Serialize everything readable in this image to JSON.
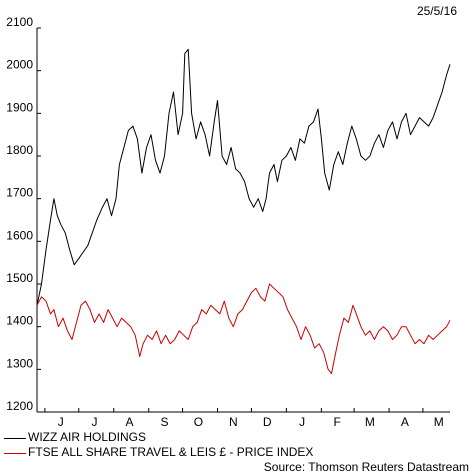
{
  "date_label": "25/5/16",
  "source": "Source: Thomson Reuters Datastream",
  "chart_data": {
    "type": "line",
    "title": "",
    "xlabel": "",
    "ylabel": "",
    "ylim": [
      1200,
      2100
    ],
    "y_ticks": [
      1200,
      1300,
      1400,
      1500,
      1600,
      1700,
      1800,
      1900,
      2000,
      2100
    ],
    "x_range": [
      "2015-05-25",
      "2016-05-25"
    ],
    "x_ticks": [
      {
        "label": "J",
        "date": "2015-06-15"
      },
      {
        "label": "J",
        "date": "2015-07-15"
      },
      {
        "label": "A",
        "date": "2015-08-15"
      },
      {
        "label": "S",
        "date": "2015-09-15"
      },
      {
        "label": "O",
        "date": "2015-10-15"
      },
      {
        "label": "N",
        "date": "2015-11-15"
      },
      {
        "label": "D",
        "date": "2015-12-15"
      },
      {
        "label": "J",
        "date": "2016-01-15"
      },
      {
        "label": "F",
        "date": "2016-02-15"
      },
      {
        "label": "M",
        "date": "2016-03-15"
      },
      {
        "label": "A",
        "date": "2016-04-15"
      },
      {
        "label": "M",
        "date": "2016-05-15"
      }
    ],
    "grid": false,
    "legend": "bottom-left",
    "series": [
      {
        "name": "WIZZ AIR HOLDINGS",
        "color": "#000000",
        "points": [
          [
            "2015-05-25",
            1450
          ],
          [
            "2015-05-29",
            1500
          ],
          [
            "2015-06-02",
            1580
          ],
          [
            "2015-06-06",
            1650
          ],
          [
            "2015-06-09",
            1700
          ],
          [
            "2015-06-12",
            1660
          ],
          [
            "2015-06-15",
            1640
          ],
          [
            "2015-06-19",
            1620
          ],
          [
            "2015-06-23",
            1580
          ],
          [
            "2015-06-27",
            1545
          ],
          [
            "2015-07-01",
            1560
          ],
          [
            "2015-07-05",
            1575
          ],
          [
            "2015-07-09",
            1590
          ],
          [
            "2015-07-13",
            1620
          ],
          [
            "2015-07-17",
            1650
          ],
          [
            "2015-07-22",
            1680
          ],
          [
            "2015-07-26",
            1700
          ],
          [
            "2015-07-30",
            1660
          ],
          [
            "2015-08-03",
            1700
          ],
          [
            "2015-08-06",
            1780
          ],
          [
            "2015-08-10",
            1820
          ],
          [
            "2015-08-14",
            1860
          ],
          [
            "2015-08-18",
            1870
          ],
          [
            "2015-08-22",
            1840
          ],
          [
            "2015-08-26",
            1760
          ],
          [
            "2015-08-30",
            1820
          ],
          [
            "2015-09-03",
            1850
          ],
          [
            "2015-09-07",
            1790
          ],
          [
            "2015-09-11",
            1760
          ],
          [
            "2015-09-15",
            1800
          ],
          [
            "2015-09-19",
            1900
          ],
          [
            "2015-09-23",
            1950
          ],
          [
            "2015-09-27",
            1850
          ],
          [
            "2015-10-01",
            1900
          ],
          [
            "2015-10-03",
            2040
          ],
          [
            "2015-10-06",
            2050
          ],
          [
            "2015-10-09",
            1900
          ],
          [
            "2015-10-13",
            1840
          ],
          [
            "2015-10-17",
            1880
          ],
          [
            "2015-10-21",
            1850
          ],
          [
            "2015-10-25",
            1800
          ],
          [
            "2015-10-29",
            1880
          ],
          [
            "2015-11-01",
            1930
          ],
          [
            "2015-11-05",
            1800
          ],
          [
            "2015-11-09",
            1780
          ],
          [
            "2015-11-13",
            1820
          ],
          [
            "2015-11-17",
            1770
          ],
          [
            "2015-11-21",
            1760
          ],
          [
            "2015-11-25",
            1740
          ],
          [
            "2015-11-29",
            1700
          ],
          [
            "2015-12-03",
            1680
          ],
          [
            "2015-12-07",
            1700
          ],
          [
            "2015-12-11",
            1670
          ],
          [
            "2015-12-14",
            1700
          ],
          [
            "2015-12-17",
            1760
          ],
          [
            "2015-12-21",
            1780
          ],
          [
            "2015-12-24",
            1740
          ],
          [
            "2015-12-28",
            1790
          ],
          [
            "2016-01-01",
            1800
          ],
          [
            "2016-01-05",
            1820
          ],
          [
            "2016-01-09",
            1790
          ],
          [
            "2016-01-13",
            1840
          ],
          [
            "2016-01-17",
            1830
          ],
          [
            "2016-01-21",
            1870
          ],
          [
            "2016-01-25",
            1880
          ],
          [
            "2016-01-29",
            1910
          ],
          [
            "2016-02-01",
            1840
          ],
          [
            "2016-02-04",
            1760
          ],
          [
            "2016-02-08",
            1720
          ],
          [
            "2016-02-12",
            1780
          ],
          [
            "2016-02-16",
            1810
          ],
          [
            "2016-02-20",
            1780
          ],
          [
            "2016-02-24",
            1830
          ],
          [
            "2016-02-28",
            1870
          ],
          [
            "2016-03-03",
            1840
          ],
          [
            "2016-03-07",
            1800
          ],
          [
            "2016-03-11",
            1790
          ],
          [
            "2016-03-15",
            1800
          ],
          [
            "2016-03-19",
            1830
          ],
          [
            "2016-03-23",
            1850
          ],
          [
            "2016-03-27",
            1820
          ],
          [
            "2016-03-31",
            1860
          ],
          [
            "2016-04-04",
            1880
          ],
          [
            "2016-04-08",
            1840
          ],
          [
            "2016-04-12",
            1880
          ],
          [
            "2016-04-16",
            1900
          ],
          [
            "2016-04-20",
            1850
          ],
          [
            "2016-04-24",
            1870
          ],
          [
            "2016-04-28",
            1890
          ],
          [
            "2016-05-02",
            1880
          ],
          [
            "2016-05-06",
            1870
          ],
          [
            "2016-05-10",
            1890
          ],
          [
            "2016-05-14",
            1920
          ],
          [
            "2016-05-18",
            1950
          ],
          [
            "2016-05-22",
            1990
          ],
          [
            "2016-05-25",
            2015
          ]
        ]
      },
      {
        "name": "FTSE ALL SHARE TRAVEL & LEIS £ - PRICE INDEX",
        "color": "#cc0000",
        "points": [
          [
            "2015-05-25",
            1450
          ],
          [
            "2015-05-29",
            1470
          ],
          [
            "2015-06-02",
            1460
          ],
          [
            "2015-06-06",
            1430
          ],
          [
            "2015-06-09",
            1440
          ],
          [
            "2015-06-13",
            1400
          ],
          [
            "2015-06-17",
            1420
          ],
          [
            "2015-06-21",
            1390
          ],
          [
            "2015-06-25",
            1370
          ],
          [
            "2015-06-29",
            1410
          ],
          [
            "2015-07-03",
            1450
          ],
          [
            "2015-07-07",
            1460
          ],
          [
            "2015-07-11",
            1440
          ],
          [
            "2015-07-15",
            1410
          ],
          [
            "2015-07-19",
            1430
          ],
          [
            "2015-07-23",
            1410
          ],
          [
            "2015-07-27",
            1440
          ],
          [
            "2015-07-31",
            1420
          ],
          [
            "2015-08-04",
            1400
          ],
          [
            "2015-08-08",
            1420
          ],
          [
            "2015-08-12",
            1410
          ],
          [
            "2015-08-16",
            1400
          ],
          [
            "2015-08-20",
            1380
          ],
          [
            "2015-08-24",
            1330
          ],
          [
            "2015-08-27",
            1360
          ],
          [
            "2015-08-31",
            1380
          ],
          [
            "2015-09-04",
            1370
          ],
          [
            "2015-09-08",
            1390
          ],
          [
            "2015-09-12",
            1360
          ],
          [
            "2015-09-16",
            1380
          ],
          [
            "2015-09-20",
            1360
          ],
          [
            "2015-09-24",
            1370
          ],
          [
            "2015-09-28",
            1390
          ],
          [
            "2015-10-02",
            1380
          ],
          [
            "2015-10-06",
            1370
          ],
          [
            "2015-10-10",
            1400
          ],
          [
            "2015-10-14",
            1410
          ],
          [
            "2015-10-18",
            1440
          ],
          [
            "2015-10-22",
            1430
          ],
          [
            "2015-10-26",
            1450
          ],
          [
            "2015-10-30",
            1440
          ],
          [
            "2015-11-03",
            1430
          ],
          [
            "2015-11-07",
            1460
          ],
          [
            "2015-11-11",
            1420
          ],
          [
            "2015-11-15",
            1400
          ],
          [
            "2015-11-19",
            1430
          ],
          [
            "2015-11-23",
            1440
          ],
          [
            "2015-11-27",
            1460
          ],
          [
            "2015-12-01",
            1480
          ],
          [
            "2015-12-05",
            1490
          ],
          [
            "2015-12-09",
            1470
          ],
          [
            "2015-12-13",
            1460
          ],
          [
            "2015-12-17",
            1500
          ],
          [
            "2015-12-21",
            1490
          ],
          [
            "2015-12-25",
            1480
          ],
          [
            "2015-12-29",
            1470
          ],
          [
            "2016-01-02",
            1440
          ],
          [
            "2016-01-06",
            1420
          ],
          [
            "2016-01-10",
            1400
          ],
          [
            "2016-01-14",
            1370
          ],
          [
            "2016-01-18",
            1400
          ],
          [
            "2016-01-22",
            1380
          ],
          [
            "2016-01-26",
            1350
          ],
          [
            "2016-01-30",
            1360
          ],
          [
            "2016-02-03",
            1340
          ],
          [
            "2016-02-07",
            1300
          ],
          [
            "2016-02-10",
            1290
          ],
          [
            "2016-02-13",
            1330
          ],
          [
            "2016-02-17",
            1380
          ],
          [
            "2016-02-21",
            1420
          ],
          [
            "2016-02-25",
            1410
          ],
          [
            "2016-02-29",
            1450
          ],
          [
            "2016-03-03",
            1430
          ],
          [
            "2016-03-07",
            1400
          ],
          [
            "2016-03-11",
            1380
          ],
          [
            "2016-03-15",
            1390
          ],
          [
            "2016-03-19",
            1370
          ],
          [
            "2016-03-23",
            1390
          ],
          [
            "2016-03-27",
            1400
          ],
          [
            "2016-03-31",
            1390
          ],
          [
            "2016-04-04",
            1370
          ],
          [
            "2016-04-08",
            1380
          ],
          [
            "2016-04-12",
            1400
          ],
          [
            "2016-04-16",
            1400
          ],
          [
            "2016-04-20",
            1380
          ],
          [
            "2016-04-24",
            1360
          ],
          [
            "2016-04-28",
            1370
          ],
          [
            "2016-05-02",
            1360
          ],
          [
            "2016-05-06",
            1380
          ],
          [
            "2016-05-10",
            1370
          ],
          [
            "2016-05-14",
            1380
          ],
          [
            "2016-05-18",
            1390
          ],
          [
            "2016-05-22",
            1400
          ],
          [
            "2016-05-25",
            1415
          ]
        ]
      }
    ]
  }
}
